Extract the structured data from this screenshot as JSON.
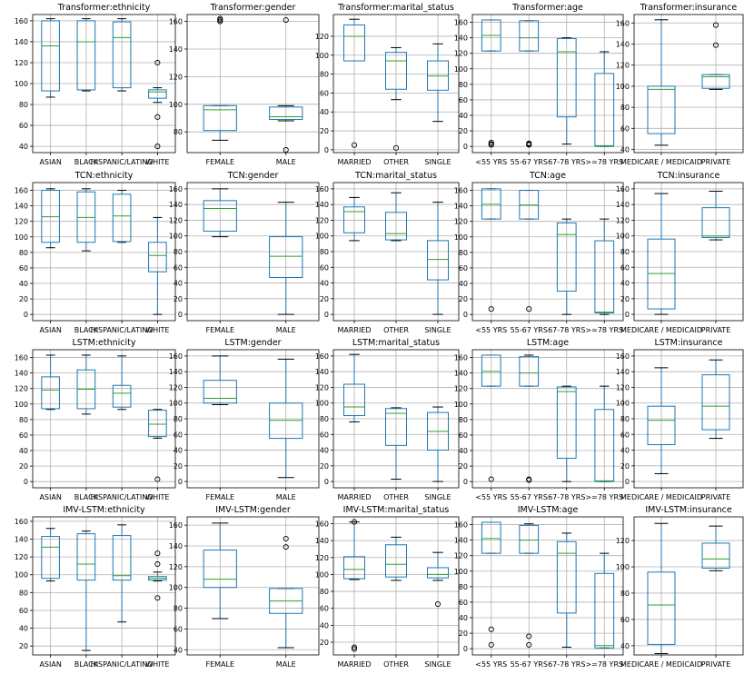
{
  "chart_data": [
    {
      "type": "box",
      "title": "Transformer:ethnicity",
      "ylim": [
        34,
        166
      ],
      "yticks": [
        40,
        60,
        80,
        100,
        120,
        140,
        160
      ],
      "grid": true,
      "categories": [
        "ASIAN",
        "BLACK",
        "HISPANIC/LATINO",
        "WHITE"
      ],
      "boxes": [
        {
          "whislo": 87,
          "q1": 93,
          "med": 136,
          "q3": 160,
          "whishi": 162,
          "fliers": []
        },
        {
          "whislo": 93,
          "q1": 94,
          "med": 140,
          "q3": 160,
          "whishi": 162,
          "fliers": []
        },
        {
          "whislo": 93,
          "q1": 96,
          "med": 144,
          "q3": 159,
          "whishi": 162,
          "fliers": []
        },
        {
          "whislo": 82,
          "q1": 86,
          "med": 92,
          "q3": 94,
          "whishi": 96,
          "fliers": [
            120,
            68,
            40
          ]
        }
      ]
    },
    {
      "type": "box",
      "title": "Transformer:gender",
      "ylim": [
        65,
        165
      ],
      "yticks": [
        80,
        100,
        120,
        140,
        160
      ],
      "grid": true,
      "categories": [
        "FEMALE",
        "MALE"
      ],
      "boxes": [
        {
          "whislo": 74,
          "q1": 81,
          "med": 96,
          "q3": 99,
          "whishi": 99,
          "fliers": [
            160,
            161,
            162
          ]
        },
        {
          "whislo": 88,
          "q1": 89,
          "med": 91,
          "q3": 98,
          "whishi": 99,
          "fliers": [
            161,
            67
          ]
        }
      ]
    },
    {
      "type": "box",
      "title": "Transformer:marital_status",
      "ylim": [
        -3,
        143
      ],
      "yticks": [
        0,
        20,
        40,
        60,
        80,
        100,
        120
      ],
      "grid": true,
      "categories": [
        "MARRIED",
        "OTHER",
        "SINGLE"
      ],
      "boxes": [
        {
          "whislo": 94,
          "q1": 94,
          "med": 120,
          "q3": 132,
          "whishi": 138,
          "fliers": [
            5
          ]
        },
        {
          "whislo": 53,
          "q1": 64,
          "med": 94,
          "q3": 103,
          "whishi": 108,
          "fliers": [
            2
          ]
        },
        {
          "whislo": 30,
          "q1": 63,
          "med": 78,
          "q3": 94,
          "whishi": 112,
          "fliers": []
        }
      ]
    },
    {
      "type": "box",
      "title": "Transformer:age",
      "ylim": [
        -8,
        170
      ],
      "yticks": [
        0,
        20,
        40,
        60,
        80,
        100,
        120,
        140,
        160
      ],
      "grid": true,
      "categories": [
        "<55 YRS",
        "55-67 YRS",
        "67-78 YRS",
        ">=78 YRS"
      ],
      "boxes": [
        {
          "whislo": 123,
          "q1": 123,
          "med": 143,
          "q3": 163,
          "whishi": 163,
          "fliers": [
            5,
            3,
            2
          ]
        },
        {
          "whislo": 123,
          "q1": 123,
          "med": 140,
          "q3": 162,
          "whishi": 162,
          "fliers": [
            4,
            3,
            2
          ]
        },
        {
          "whislo": 3,
          "q1": 38,
          "med": 122,
          "q3": 139,
          "whishi": 140,
          "fliers": []
        },
        {
          "whislo": 0,
          "q1": 0,
          "med": 1,
          "q3": 94,
          "whishi": 122,
          "fliers": []
        }
      ]
    },
    {
      "type": "box",
      "title": "Transformer:insurance",
      "ylim": [
        37,
        168
      ],
      "yticks": [
        40,
        60,
        80,
        100,
        120,
        140,
        160
      ],
      "grid": true,
      "categories": [
        "MEDICARE / MEDICAID",
        "PRIVATE"
      ],
      "boxes": [
        {
          "whislo": 44,
          "q1": 55,
          "med": 97,
          "q3": 100,
          "whishi": 163,
          "fliers": []
        },
        {
          "whislo": 97,
          "q1": 98,
          "med": 109,
          "q3": 111,
          "whishi": 111,
          "fliers": [
            158,
            139
          ]
        }
      ]
    },
    {
      "type": "box",
      "title": "TCN:ethnicity",
      "ylim": [
        -8,
        170
      ],
      "yticks": [
        0,
        20,
        40,
        60,
        80,
        100,
        120,
        140,
        160
      ],
      "grid": true,
      "categories": [
        "ASIAN",
        "BLACK",
        "HISPANIC/LATINO",
        "WHITE"
      ],
      "boxes": [
        {
          "whislo": 86,
          "q1": 93,
          "med": 126,
          "q3": 160,
          "whishi": 162,
          "fliers": []
        },
        {
          "whislo": 82,
          "q1": 93,
          "med": 125,
          "q3": 158,
          "whishi": 162,
          "fliers": []
        },
        {
          "whislo": 93,
          "q1": 94,
          "med": 127,
          "q3": 155,
          "whishi": 160,
          "fliers": []
        },
        {
          "whislo": 0,
          "q1": 55,
          "med": 76,
          "q3": 93,
          "whishi": 125,
          "fliers": []
        }
      ]
    },
    {
      "type": "box",
      "title": "TCN:gender",
      "ylim": [
        -8,
        168
      ],
      "yticks": [
        0,
        20,
        40,
        60,
        80,
        100,
        120,
        140,
        160
      ],
      "grid": true,
      "categories": [
        "FEMALE",
        "MALE"
      ],
      "boxes": [
        {
          "whislo": 99,
          "q1": 106,
          "med": 135,
          "q3": 145,
          "whishi": 160,
          "fliers": []
        },
        {
          "whislo": 0,
          "q1": 47,
          "med": 74,
          "q3": 99,
          "whishi": 143,
          "fliers": []
        }
      ]
    },
    {
      "type": "box",
      "title": "TCN:marital_status",
      "ylim": [
        -8,
        168
      ],
      "yticks": [
        0,
        20,
        40,
        60,
        80,
        100,
        120,
        140,
        160
      ],
      "grid": true,
      "categories": [
        "MARRIED",
        "OTHER",
        "SINGLE"
      ],
      "boxes": [
        {
          "whislo": 94,
          "q1": 104,
          "med": 131,
          "q3": 137,
          "whishi": 149,
          "fliers": []
        },
        {
          "whislo": 94,
          "q1": 95,
          "med": 103,
          "q3": 130,
          "whishi": 155,
          "fliers": []
        },
        {
          "whislo": 0,
          "q1": 44,
          "med": 70,
          "q3": 94,
          "whishi": 143,
          "fliers": []
        }
      ]
    },
    {
      "type": "box",
      "title": "TCN:age",
      "ylim": [
        -8,
        170
      ],
      "yticks": [
        0,
        20,
        40,
        60,
        80,
        100,
        120,
        140,
        160
      ],
      "grid": true,
      "categories": [
        "<55 YRS",
        "55-67 YRS",
        "67-78 YRS",
        ">=78 YRS"
      ],
      "boxes": [
        {
          "whislo": 123,
          "q1": 123,
          "med": 142,
          "q3": 162,
          "whishi": 162,
          "fliers": [
            7
          ]
        },
        {
          "whislo": 123,
          "q1": 123,
          "med": 141,
          "q3": 160,
          "whishi": 160,
          "fliers": [
            7
          ]
        },
        {
          "whislo": 0,
          "q1": 30,
          "med": 103,
          "q3": 118,
          "whishi": 123,
          "fliers": []
        },
        {
          "whislo": 0,
          "q1": 2,
          "med": 3,
          "q3": 95,
          "whishi": 123,
          "fliers": []
        }
      ]
    },
    {
      "type": "box",
      "title": "TCN:insurance",
      "ylim": [
        -8,
        168
      ],
      "yticks": [
        0,
        20,
        40,
        60,
        80,
        100,
        120,
        140,
        160
      ],
      "grid": true,
      "categories": [
        "MEDICARE / MEDICAID",
        "PRIVATE"
      ],
      "boxes": [
        {
          "whislo": 0,
          "q1": 7,
          "med": 52,
          "q3": 96,
          "whishi": 154,
          "fliers": []
        },
        {
          "whislo": 95,
          "q1": 98,
          "med": 100,
          "q3": 136,
          "whishi": 157,
          "fliers": []
        }
      ]
    },
    {
      "type": "box",
      "title": "LSTM:ethnicity",
      "ylim": [
        -8,
        170
      ],
      "yticks": [
        0,
        20,
        40,
        60,
        80,
        100,
        120,
        140,
        160
      ],
      "grid": true,
      "categories": [
        "ASIAN",
        "BLACK",
        "HISPANIC/LATINO",
        "WHITE"
      ],
      "boxes": [
        {
          "whislo": 93,
          "q1": 94,
          "med": 118,
          "q3": 135,
          "whishi": 163,
          "fliers": []
        },
        {
          "whislo": 87,
          "q1": 94,
          "med": 119,
          "q3": 144,
          "whishi": 163,
          "fliers": []
        },
        {
          "whislo": 93,
          "q1": 96,
          "med": 114,
          "q3": 124,
          "whishi": 162,
          "fliers": []
        },
        {
          "whislo": 56,
          "q1": 58,
          "med": 74,
          "q3": 92,
          "whishi": 93,
          "fliers": [
            3
          ]
        }
      ]
    },
    {
      "type": "box",
      "title": "LSTM:gender",
      "ylim": [
        -8,
        168
      ],
      "yticks": [
        0,
        20,
        40,
        60,
        80,
        100,
        120,
        140,
        160
      ],
      "grid": true,
      "categories": [
        "FEMALE",
        "MALE"
      ],
      "boxes": [
        {
          "whislo": 98,
          "q1": 100,
          "med": 106,
          "q3": 129,
          "whishi": 160,
          "fliers": []
        },
        {
          "whislo": 5,
          "q1": 55,
          "med": 78,
          "q3": 100,
          "whishi": 156,
          "fliers": []
        }
      ]
    },
    {
      "type": "box",
      "title": "LSTM:marital_status",
      "ylim": [
        -8,
        168
      ],
      "yticks": [
        0,
        20,
        40,
        60,
        80,
        100,
        120,
        140,
        160
      ],
      "grid": true,
      "categories": [
        "MARRIED",
        "OTHER",
        "SINGLE"
      ],
      "boxes": [
        {
          "whislo": 76,
          "q1": 84,
          "med": 95,
          "q3": 124,
          "whishi": 162,
          "fliers": []
        },
        {
          "whislo": 3,
          "q1": 46,
          "med": 87,
          "q3": 93,
          "whishi": 94,
          "fliers": []
        },
        {
          "whislo": 0,
          "q1": 40,
          "med": 64,
          "q3": 88,
          "whishi": 95,
          "fliers": []
        }
      ]
    },
    {
      "type": "box",
      "title": "LSTM:age",
      "ylim": [
        -8,
        170
      ],
      "yticks": [
        0,
        20,
        40,
        60,
        80,
        100,
        120,
        140,
        160
      ],
      "grid": true,
      "categories": [
        "<55 YRS",
        "55-67 YRS",
        "67-78 YRS",
        ">=78 YRS"
      ],
      "boxes": [
        {
          "whislo": 123,
          "q1": 123,
          "med": 142,
          "q3": 163,
          "whishi": 163,
          "fliers": [
            3
          ]
        },
        {
          "whislo": 123,
          "q1": 123,
          "med": 140,
          "q3": 161,
          "whishi": 163,
          "fliers": [
            3,
            2
          ]
        },
        {
          "whislo": 0,
          "q1": 30,
          "med": 116,
          "q3": 122,
          "whishi": 123,
          "fliers": []
        },
        {
          "whislo": 0,
          "q1": 0,
          "med": 1,
          "q3": 93,
          "whishi": 123,
          "fliers": []
        }
      ]
    },
    {
      "type": "box",
      "title": "LSTM:insurance",
      "ylim": [
        -8,
        168
      ],
      "yticks": [
        0,
        20,
        40,
        60,
        80,
        100,
        120,
        140,
        160
      ],
      "grid": true,
      "categories": [
        "MEDICARE / MEDICAID",
        "PRIVATE"
      ],
      "boxes": [
        {
          "whislo": 10,
          "q1": 47,
          "med": 78,
          "q3": 96,
          "whishi": 145,
          "fliers": []
        },
        {
          "whislo": 55,
          "q1": 66,
          "med": 96,
          "q3": 136,
          "whishi": 155,
          "fliers": []
        }
      ]
    },
    {
      "type": "box",
      "title": "IMV-LSTM:ethnicity",
      "ylim": [
        10,
        165
      ],
      "yticks": [
        20,
        40,
        60,
        80,
        100,
        120,
        140,
        160
      ],
      "grid": true,
      "categories": [
        "ASIAN",
        "BLACK",
        "HISPANIC/LATINO",
        "WHITE"
      ],
      "boxes": [
        {
          "whislo": 93,
          "q1": 96,
          "med": 131,
          "q3": 143,
          "whishi": 152,
          "fliers": []
        },
        {
          "whislo": 15,
          "q1": 94,
          "med": 112,
          "q3": 146,
          "whishi": 149,
          "fliers": []
        },
        {
          "whislo": 47,
          "q1": 94,
          "med": 99,
          "q3": 144,
          "whishi": 156,
          "fliers": []
        },
        {
          "whislo": 93,
          "q1": 94,
          "med": 96,
          "q3": 98,
          "whishi": 103,
          "fliers": [
            124,
            112,
            74
          ]
        }
      ]
    },
    {
      "type": "box",
      "title": "IMV-LSTM:gender",
      "ylim": [
        35,
        168
      ],
      "yticks": [
        40,
        60,
        80,
        100,
        120,
        140,
        160
      ],
      "grid": true,
      "categories": [
        "FEMALE",
        "MALE"
      ],
      "boxes": [
        {
          "whislo": 70,
          "q1": 100,
          "med": 108,
          "q3": 136,
          "whishi": 162,
          "fliers": []
        },
        {
          "whislo": 42,
          "q1": 75,
          "med": 87,
          "q3": 99,
          "whishi": 99,
          "fliers": [
            147,
            139
          ]
        }
      ]
    },
    {
      "type": "box",
      "title": "IMV-LSTM:marital_status",
      "ylim": [
        5,
        168
      ],
      "yticks": [
        20,
        40,
        60,
        80,
        100,
        120,
        140,
        160
      ],
      "grid": true,
      "categories": [
        "MARRIED",
        "OTHER",
        "SINGLE"
      ],
      "boxes": [
        {
          "whislo": 94,
          "q1": 95,
          "med": 106,
          "q3": 121,
          "whishi": 162,
          "fliers": [
            162,
            14,
            12
          ]
        },
        {
          "whislo": 93,
          "q1": 97,
          "med": 112,
          "q3": 135,
          "whishi": 144,
          "fliers": []
        },
        {
          "whislo": 93,
          "q1": 96,
          "med": 100,
          "q3": 108,
          "whishi": 126,
          "fliers": [
            65
          ]
        }
      ]
    },
    {
      "type": "box",
      "title": "IMV-LSTM:age",
      "ylim": [
        -8,
        170
      ],
      "yticks": [
        0,
        20,
        40,
        60,
        80,
        100,
        120,
        140,
        160
      ],
      "grid": true,
      "categories": [
        "<55 YRS",
        "55-67 YRS",
        "67-78 YRS",
        ">=78 YRS"
      ],
      "boxes": [
        {
          "whislo": 123,
          "q1": 123,
          "med": 142,
          "q3": 163,
          "whishi": 163,
          "fliers": [
            25,
            5
          ]
        },
        {
          "whislo": 123,
          "q1": 123,
          "med": 140,
          "q3": 159,
          "whishi": 161,
          "fliers": [
            16,
            5
          ]
        },
        {
          "whislo": 2,
          "q1": 46,
          "med": 123,
          "q3": 138,
          "whishi": 149,
          "fliers": []
        },
        {
          "whislo": 1,
          "q1": 1,
          "med": 4,
          "q3": 97,
          "whishi": 123,
          "fliers": []
        }
      ]
    },
    {
      "type": "box",
      "title": "IMV-LSTM:insurance",
      "ylim": [
        33,
        138
      ],
      "yticks": [
        40,
        60,
        80,
        100,
        120
      ],
      "grid": true,
      "categories": [
        "MEDICARE / MEDICAID",
        "PRIVATE"
      ],
      "boxes": [
        {
          "whislo": 34,
          "q1": 41,
          "med": 71,
          "q3": 96,
          "whishi": 133,
          "fliers": []
        },
        {
          "whislo": 97,
          "q1": 99,
          "med": 106,
          "q3": 118,
          "whishi": 131,
          "fliers": []
        }
      ]
    }
  ]
}
